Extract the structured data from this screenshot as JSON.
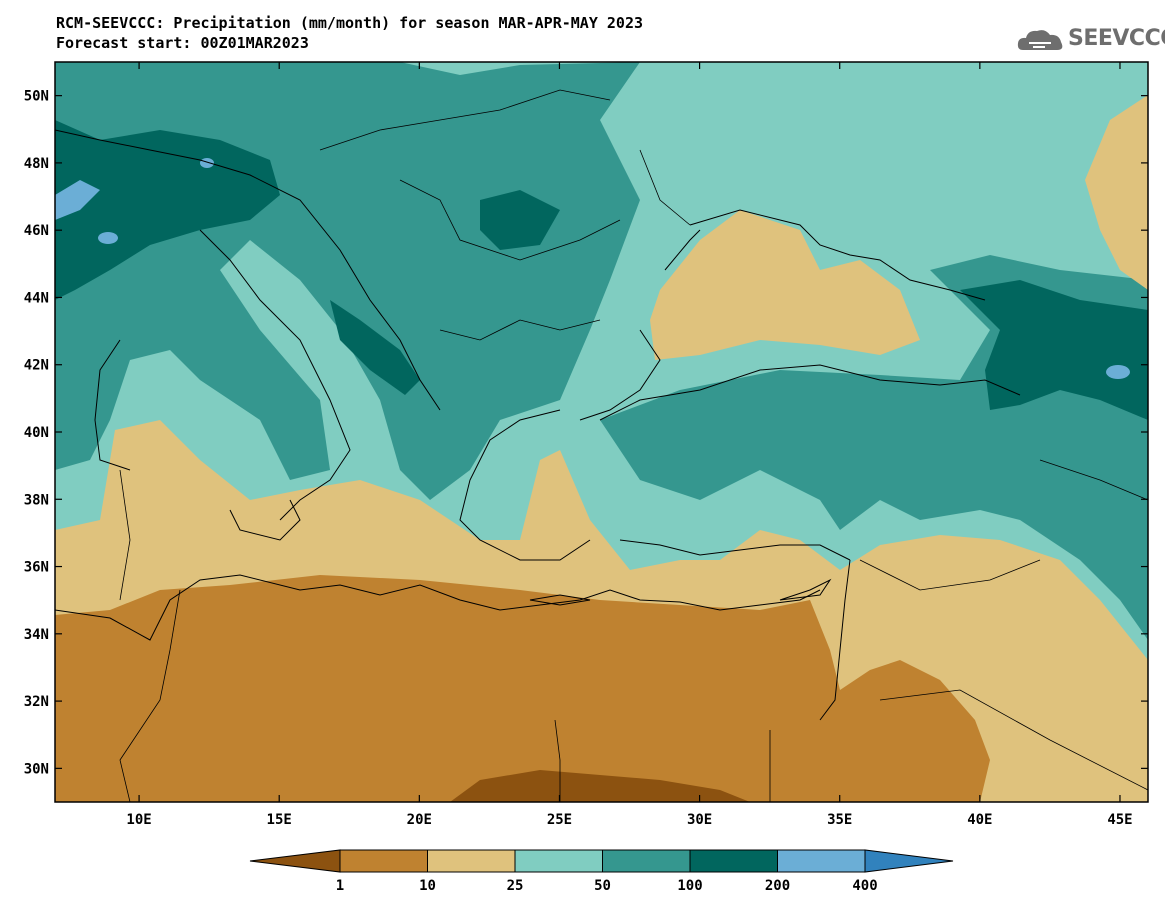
{
  "header": {
    "title_line1": "RCM-SEEVCCC: Precipitation (mm/month) for season MAR-APR-MAY 2023",
    "title_line2": "Forecast start: 00Z01MAR2023"
  },
  "logo": {
    "text": "SEEVCCC",
    "icon": "cloud-logo-icon"
  },
  "map": {
    "projection": "lat-lon",
    "lon_range": [
      7,
      46
    ],
    "lat_range": [
      29,
      51
    ],
    "lon_ticks": [
      {
        "value": 10,
        "label": "10E"
      },
      {
        "value": 15,
        "label": "15E"
      },
      {
        "value": 20,
        "label": "20E"
      },
      {
        "value": 25,
        "label": "25E"
      },
      {
        "value": 30,
        "label": "30E"
      },
      {
        "value": 35,
        "label": "35E"
      },
      {
        "value": 40,
        "label": "40E"
      },
      {
        "value": 45,
        "label": "45E"
      }
    ],
    "lat_ticks": [
      {
        "value": 30,
        "label": "30N"
      },
      {
        "value": 32,
        "label": "32N"
      },
      {
        "value": 34,
        "label": "34N"
      },
      {
        "value": 36,
        "label": "36N"
      },
      {
        "value": 38,
        "label": "38N"
      },
      {
        "value": 40,
        "label": "40N"
      },
      {
        "value": 42,
        "label": "42N"
      },
      {
        "value": 44,
        "label": "44N"
      },
      {
        "value": 46,
        "label": "46N"
      },
      {
        "value": 48,
        "label": "48N"
      },
      {
        "value": 50,
        "label": "50N"
      }
    ]
  },
  "colorbar": {
    "levels": [
      "1",
      "10",
      "25",
      "50",
      "100",
      "200",
      "400"
    ],
    "colors": [
      "#8c5210",
      "#bf8230",
      "#dfc27d",
      "#80cdc1",
      "#35978f",
      "#01665e",
      "#6baed6",
      "#3182bd"
    ]
  },
  "colors": {
    "under1": "#8c5210",
    "c1_10": "#bf8230",
    "c10_25": "#dfc27d",
    "c25_50": "#80cdc1",
    "c50_100": "#35978f",
    "c100_200": "#01665e",
    "c200_400": "#6baed6",
    "over400": "#3182bd"
  }
}
